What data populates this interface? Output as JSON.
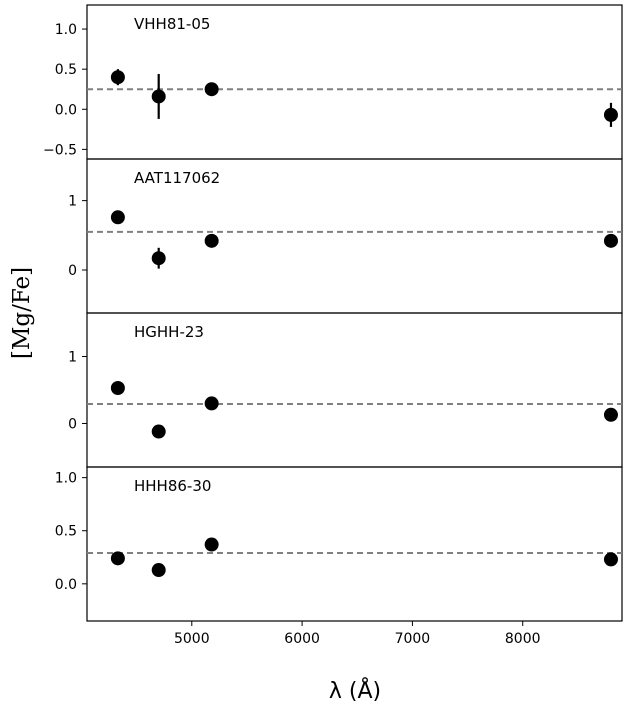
{
  "chart_data": {
    "type": "scatter",
    "shared_x_axis": true,
    "xlabel": "λ (Å)",
    "ylabel": "[Mg/Fe]",
    "xlim": [
      4050,
      8900
    ],
    "xticks": [
      5000,
      6000,
      7000,
      8000
    ],
    "x": [
      4330,
      4700,
      5180,
      8800
    ],
    "marker_color": "#000000",
    "reference_line_color": "#808080",
    "panels": [
      {
        "label": "VHH81-05",
        "ylim": [
          -0.62,
          1.3
        ],
        "yticks": [
          -0.5,
          0.0,
          0.5,
          1.0
        ],
        "ytick_labels": [
          "−0.5",
          "0.0",
          "0.5",
          "1.0"
        ],
        "reference_line": 0.25,
        "points": [
          {
            "x": 4330,
            "y": 0.4,
            "yerr": 0.1
          },
          {
            "x": 4700,
            "y": 0.16,
            "yerr": 0.28
          },
          {
            "x": 5180,
            "y": 0.25,
            "yerr": 0.0
          },
          {
            "x": 8800,
            "y": -0.07,
            "yerr": 0.15
          }
        ]
      },
      {
        "label": "AAT117062",
        "ylim": [
          -0.62,
          1.6
        ],
        "yticks": [
          0,
          1
        ],
        "ytick_labels": [
          "0",
          "1"
        ],
        "reference_line": 0.55,
        "points": [
          {
            "x": 4330,
            "y": 0.76,
            "yerr": 0.0
          },
          {
            "x": 4700,
            "y": 0.17,
            "yerr": 0.15
          },
          {
            "x": 5180,
            "y": 0.42,
            "yerr": 0.0
          },
          {
            "x": 8800,
            "y": 0.42,
            "yerr": 0.0
          }
        ]
      },
      {
        "label": "HGHH-23",
        "ylim": [
          -0.65,
          1.65
        ],
        "yticks": [
          0,
          1
        ],
        "ytick_labels": [
          "0",
          "1"
        ],
        "reference_line": 0.29,
        "points": [
          {
            "x": 4330,
            "y": 0.53,
            "yerr": 0.0
          },
          {
            "x": 4700,
            "y": -0.12,
            "yerr": 0.0
          },
          {
            "x": 5180,
            "y": 0.3,
            "yerr": 0.0
          },
          {
            "x": 8800,
            "y": 0.13,
            "yerr": 0.0
          }
        ]
      },
      {
        "label": "HHH86-30",
        "ylim": [
          -0.35,
          1.1
        ],
        "yticks": [
          0.0,
          0.5,
          1.0
        ],
        "ytick_labels": [
          "0.0",
          "0.5",
          "1.0"
        ],
        "reference_line": 0.29,
        "points": [
          {
            "x": 4330,
            "y": 0.24,
            "yerr": 0.0
          },
          {
            "x": 4700,
            "y": 0.13,
            "yerr": 0.0
          },
          {
            "x": 5180,
            "y": 0.37,
            "yerr": 0.0
          },
          {
            "x": 8800,
            "y": 0.23,
            "yerr": 0.0
          }
        ]
      }
    ]
  }
}
